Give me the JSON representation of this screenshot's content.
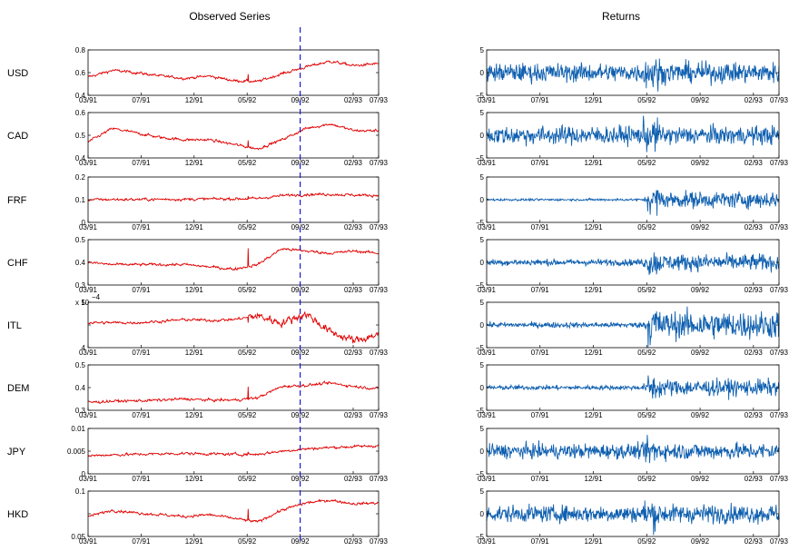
{
  "chart_data": {
    "type": "line",
    "titles": {
      "left": "Observed Series",
      "right": "Returns"
    },
    "x_ticks": [
      "03/91",
      "07/91",
      "12/91",
      "05/92",
      "09/92",
      "02/93",
      "07/93"
    ],
    "break_date": "09/92",
    "colors": {
      "observed": "#e00000",
      "returns": "#1060b0",
      "break": "#1a1ad0"
    },
    "observed": [
      {
        "name": "USD",
        "ylim": [
          0.4,
          0.8
        ],
        "yticks": [
          "0.8",
          "0.6",
          "0.4"
        ],
        "anchors": [
          0.56,
          0.62,
          0.6,
          0.57,
          0.55,
          0.57,
          0.53,
          0.52,
          0.59,
          0.65,
          0.7,
          0.66,
          0.68
        ]
      },
      {
        "name": "CAD",
        "ylim": [
          0.4,
          0.6
        ],
        "yticks": [
          "0.6",
          "0.5",
          "0.4"
        ],
        "anchors": [
          0.47,
          0.53,
          0.51,
          0.49,
          0.48,
          0.48,
          0.46,
          0.44,
          0.48,
          0.53,
          0.55,
          0.52,
          0.52
        ]
      },
      {
        "name": "FRF",
        "ylim": [
          0,
          0.2
        ],
        "yticks": [
          "0.2",
          "0.1",
          "0"
        ],
        "anchors": [
          0.1,
          0.101,
          0.101,
          0.102,
          0.102,
          0.103,
          0.104,
          0.105,
          0.118,
          0.123,
          0.124,
          0.12,
          0.119
        ]
      },
      {
        "name": "CHF",
        "ylim": [
          0.3,
          0.5
        ],
        "yticks": [
          "0.5",
          "0.4",
          "0.3"
        ],
        "anchors": [
          0.4,
          0.39,
          0.39,
          0.39,
          0.39,
          0.38,
          0.37,
          0.39,
          0.46,
          0.45,
          0.44,
          0.45,
          0.44
        ]
      },
      {
        "name": "ITL",
        "ylim": [
          4,
          5
        ],
        "yticks": [
          "5",
          "",
          "4"
        ],
        "exponent": "x 10^-4",
        "anchors": [
          4.55,
          4.55,
          4.55,
          4.58,
          4.62,
          4.6,
          4.62,
          4.7,
          4.55,
          4.75,
          4.35,
          4.15,
          4.3
        ]
      },
      {
        "name": "DEM",
        "ylim": [
          0.3,
          0.5
        ],
        "yticks": [
          "0.5",
          "0.4",
          "0.3"
        ],
        "anchors": [
          0.335,
          0.34,
          0.342,
          0.345,
          0.35,
          0.345,
          0.345,
          0.355,
          0.405,
          0.41,
          0.42,
          0.405,
          0.395
        ]
      },
      {
        "name": "JPY",
        "ylim": [
          0,
          0.01
        ],
        "yticks": [
          "0.01",
          "0.005",
          "0"
        ],
        "anchors": [
          0.004,
          0.0042,
          0.0043,
          0.0044,
          0.0045,
          0.0044,
          0.0043,
          0.0043,
          0.005,
          0.0055,
          0.0058,
          0.006,
          0.0062
        ]
      },
      {
        "name": "HKD",
        "ylim": [
          0.05,
          0.1
        ],
        "yticks": [
          "0.1",
          "",
          "0.05"
        ],
        "anchors": [
          0.072,
          0.079,
          0.076,
          0.074,
          0.072,
          0.074,
          0.07,
          0.066,
          0.079,
          0.087,
          0.09,
          0.086,
          0.087
        ]
      }
    ],
    "returns": [
      {
        "name": "USD",
        "ylim": [
          -5,
          5
        ],
        "yticks": [
          "5",
          "0",
          "-5"
        ],
        "pre": 1.0,
        "post": 1.1
      },
      {
        "name": "CAD",
        "ylim": [
          -5,
          5
        ],
        "yticks": [
          "5",
          "0",
          "-5"
        ],
        "pre": 1.0,
        "post": 1.0
      },
      {
        "name": "FRF",
        "ylim": [
          -5,
          5
        ],
        "yticks": [
          "5",
          "0",
          "-5"
        ],
        "pre": 0.12,
        "post": 0.9
      },
      {
        "name": "CHF",
        "ylim": [
          -5,
          5
        ],
        "yticks": [
          "5",
          "0",
          "-5"
        ],
        "pre": 0.35,
        "post": 0.9
      },
      {
        "name": "ITL",
        "ylim": [
          -5,
          5
        ],
        "yticks": [
          "5",
          "0",
          "-5"
        ],
        "pre": 0.3,
        "post": 1.5
      },
      {
        "name": "DEM",
        "ylim": [
          -5,
          5
        ],
        "yticks": [
          "5",
          "0",
          "-5"
        ],
        "pre": 0.25,
        "post": 0.9
      },
      {
        "name": "JPY",
        "ylim": [
          -5,
          5
        ],
        "yticks": [
          "5",
          "0",
          "-5"
        ],
        "pre": 0.8,
        "post": 0.9
      },
      {
        "name": "HKD",
        "ylim": [
          -5,
          5
        ],
        "yticks": [
          "5",
          "0",
          "-5"
        ],
        "pre": 0.9,
        "post": 1.0
      }
    ]
  }
}
